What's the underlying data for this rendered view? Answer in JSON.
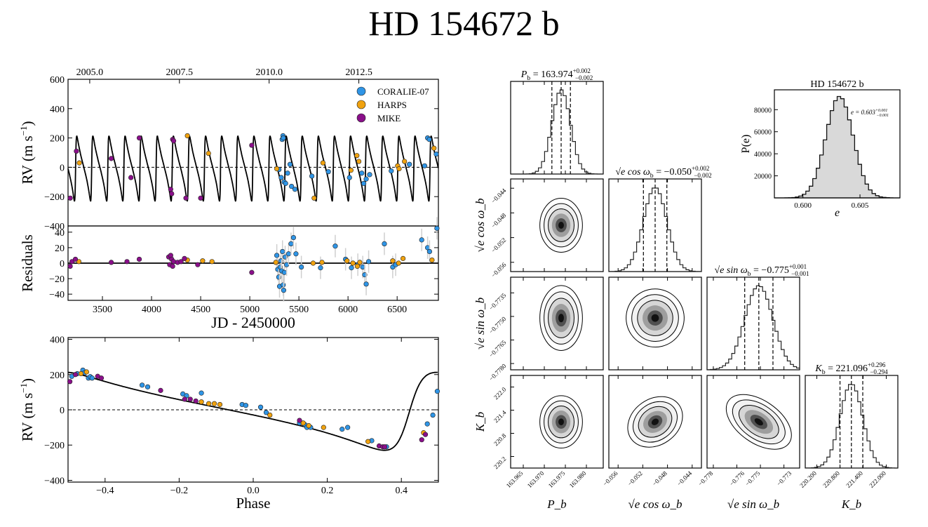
{
  "title": "HD 154672 b",
  "colors": {
    "coralie": "#2f95e6",
    "harps": "#f0a20f",
    "mike": "#8a0f8a",
    "model": "#000000",
    "hist_fill": "#d9d9d9"
  },
  "chart_data": [
    {
      "id": "rv_time",
      "type": "scatter",
      "ylabel": "RV (m s$^{-1}$)",
      "ylabel_text": "RV (m s",
      "ylabel_sup": "−1",
      "ylabel_close": ")",
      "xlim": [
        3150,
        6920
      ],
      "ylim": [
        -400,
        600
      ],
      "yticks": [
        -400,
        -200,
        0,
        200,
        400,
        600
      ],
      "top_axis_ticks": [
        "2005.0",
        "2007.5",
        "2010.0",
        "2012.5"
      ],
      "top_axis_values": [
        2005.0,
        2007.5,
        2010.0,
        2012.5
      ],
      "legend": [
        "CORALIE-07",
        "HARPS",
        "MIKE"
      ],
      "legend_position": "top-right",
      "model": {
        "period": 163.974,
        "K": 221.096,
        "e": 0.603
      },
      "series": [
        {
          "name": "CORALIE-07",
          "points": [
            [
              5297,
              -15
            ],
            [
              5320,
              -70
            ],
            [
              5330,
              190
            ],
            [
              5338,
              215
            ],
            [
              5342,
              200
            ],
            [
              5350,
              -100
            ],
            [
              5365,
              -110
            ],
            [
              5385,
              -40
            ],
            [
              5410,
              20
            ],
            [
              5425,
              -130
            ],
            [
              5460,
              -150
            ],
            [
              5632,
              -60
            ],
            [
              5800,
              -30
            ],
            [
              6015,
              -70
            ],
            [
              6140,
              -40
            ],
            [
              6160,
              -110
            ],
            [
              6185,
              -80
            ],
            [
              6220,
              -50
            ],
            [
              6440,
              -25
            ],
            [
              6625,
              20
            ],
            [
              6780,
              10
            ],
            [
              6810,
              200
            ],
            [
              6828,
              190
            ],
            [
              6898,
              90
            ]
          ]
        },
        {
          "name": "HARPS",
          "points": [
            [
              3265,
              30
            ],
            [
              4365,
              215
            ],
            [
              4580,
              95
            ],
            [
              5275,
              -10
            ],
            [
              5655,
              -210
            ],
            [
              5745,
              30
            ],
            [
              6030,
              -20
            ],
            [
              6090,
              80
            ],
            [
              6110,
              40
            ],
            [
              6505,
              10
            ],
            [
              6520,
              -10
            ],
            [
              6575,
              40
            ],
            [
              6875,
              130
            ]
          ]
        },
        {
          "name": "MIKE",
          "points": [
            [
              3172,
              -210
            ],
            [
              3235,
              110
            ],
            [
              3590,
              60
            ],
            [
              3790,
              -70
            ],
            [
              3875,
              200
            ],
            [
              4195,
              -150
            ],
            [
              4205,
              -180
            ],
            [
              4215,
              190
            ],
            [
              4225,
              180
            ],
            [
              4350,
              -210
            ],
            [
              4500,
              -210
            ],
            [
              5020,
              150
            ]
          ]
        }
      ]
    },
    {
      "id": "residuals",
      "type": "scatter",
      "ylabel": "Residuals",
      "xlabel": "JD - 2450000",
      "xlim": [
        3150,
        6920
      ],
      "ylim": [
        -48,
        48
      ],
      "yticks": [
        -40,
        -20,
        0,
        20,
        40
      ],
      "xticks": [
        3500,
        4000,
        4500,
        5000,
        5500,
        6000,
        6500
      ],
      "series": [
        {
          "name": "CORALIE-07",
          "points": [
            [
              5275,
              10
            ],
            [
              5285,
              -8
            ],
            [
              5295,
              -18
            ],
            [
              5303,
              -30
            ],
            [
              5310,
              -5
            ],
            [
              5318,
              3
            ],
            [
              5325,
              -10
            ],
            [
              5333,
              15
            ],
            [
              5340,
              -28
            ],
            [
              5345,
              -35
            ],
            [
              5352,
              -12
            ],
            [
              5360,
              8
            ],
            [
              5375,
              -2
            ],
            [
              5395,
              12
            ],
            [
              5420,
              25
            ],
            [
              5445,
              33
            ],
            [
              5470,
              12
            ],
            [
              5525,
              -5
            ],
            [
              5720,
              -6
            ],
            [
              5870,
              22
            ],
            [
              5975,
              5
            ],
            [
              6035,
              -6
            ],
            [
              6100,
              -2
            ],
            [
              6150,
              -5
            ],
            [
              6170,
              -15
            ],
            [
              6185,
              -27
            ],
            [
              6210,
              2
            ],
            [
              6370,
              25
            ],
            [
              6455,
              -5
            ],
            [
              6485,
              -2
            ],
            [
              6750,
              30
            ],
            [
              6810,
              20
            ],
            [
              6830,
              15
            ],
            [
              6905,
              45
            ]
          ]
        },
        {
          "name": "HARPS",
          "points": [
            [
              3260,
              2
            ],
            [
              4365,
              4
            ],
            [
              4520,
              3
            ],
            [
              4615,
              2
            ],
            [
              5265,
              1
            ],
            [
              5645,
              0
            ],
            [
              5735,
              1
            ],
            [
              5990,
              3
            ],
            [
              6050,
              0
            ],
            [
              6095,
              -4
            ],
            [
              6120,
              1
            ],
            [
              6455,
              3
            ],
            [
              6515,
              0
            ],
            [
              6560,
              6
            ],
            [
              6855,
              4
            ]
          ]
        },
        {
          "name": "MIKE",
          "points": [
            [
              3172,
              -4
            ],
            [
              3190,
              2
            ],
            [
              3225,
              5
            ],
            [
              3590,
              1
            ],
            [
              3750,
              2
            ],
            [
              3875,
              5
            ],
            [
              4175,
              8
            ],
            [
              4185,
              -2
            ],
            [
              4195,
              10
            ],
            [
              4205,
              5
            ],
            [
              4215,
              -4
            ],
            [
              4225,
              2
            ],
            [
              4265,
              1
            ],
            [
              4300,
              2
            ],
            [
              4335,
              6
            ],
            [
              4470,
              -2
            ],
            [
              5020,
              -12
            ]
          ]
        }
      ]
    },
    {
      "id": "rv_phase",
      "type": "scatter",
      "ylabel": "RV (m s$^{-1}$)",
      "ylabel_text": "RV (m s",
      "ylabel_sup": "−1",
      "ylabel_close": ")",
      "xlabel": "Phase",
      "xlim": [
        -0.5,
        0.5
      ],
      "ylim": [
        -410,
        410
      ],
      "yticks": [
        -400,
        -200,
        0,
        200,
        400
      ],
      "xticks": [
        -0.4,
        -0.2,
        0.0,
        0.2,
        0.4
      ],
      "xticklabels": [
        "−0.4",
        "−0.2",
        "0.0",
        "0.2",
        "0.4"
      ],
      "series": [
        {
          "name": "CORALIE-07",
          "points": [
            [
              -0.49,
              190
            ],
            [
              -0.475,
              205
            ],
            [
              -0.46,
              225
            ],
            [
              -0.455,
              210
            ],
            [
              -0.445,
              180
            ],
            [
              -0.44,
              188
            ],
            [
              -0.435,
              180
            ],
            [
              -0.3,
              140
            ],
            [
              -0.285,
              130
            ],
            [
              -0.19,
              90
            ],
            [
              -0.18,
              80
            ],
            [
              -0.14,
              95
            ],
            [
              -0.03,
              30
            ],
            [
              -0.02,
              25
            ],
            [
              0.02,
              15
            ],
            [
              0.035,
              -15
            ],
            [
              0.125,
              -75
            ],
            [
              0.14,
              -85
            ],
            [
              0.145,
              -100
            ],
            [
              0.155,
              -100
            ],
            [
              0.24,
              -110
            ],
            [
              0.255,
              -100
            ],
            [
              0.32,
              -175
            ],
            [
              0.36,
              -210
            ],
            [
              0.47,
              -80
            ],
            [
              0.485,
              -30
            ],
            [
              0.497,
              105
            ]
          ]
        },
        {
          "name": "HARPS",
          "points": [
            [
              -0.465,
              205
            ],
            [
              -0.45,
              215
            ],
            [
              -0.14,
              45
            ],
            [
              -0.12,
              35
            ],
            [
              -0.105,
              35
            ],
            [
              -0.09,
              30
            ],
            [
              0.045,
              -30
            ],
            [
              0.135,
              -75
            ],
            [
              0.15,
              -90
            ],
            [
              0.19,
              -100
            ],
            [
              0.31,
              -180
            ],
            [
              0.46,
              -130
            ]
          ]
        },
        {
          "name": "MIKE",
          "points": [
            [
              -0.495,
              160
            ],
            [
              -0.48,
              200
            ],
            [
              -0.42,
              190
            ],
            [
              -0.41,
              180
            ],
            [
              -0.25,
              110
            ],
            [
              -0.185,
              60
            ],
            [
              -0.17,
              60
            ],
            [
              -0.155,
              50
            ],
            [
              0.125,
              -60
            ],
            [
              0.34,
              -205
            ],
            [
              0.35,
              -210
            ],
            [
              0.355,
              -210
            ],
            [
              0.455,
              -170
            ],
            [
              0.465,
              -140
            ]
          ]
        }
      ]
    },
    {
      "id": "corner",
      "type": "corner",
      "params": [
        {
          "axis_label": "P_b",
          "title_base": "P",
          "title_sub": "b",
          "value": "163.974",
          "plus": "+0.002",
          "minus": "−0.002",
          "range": [
            163.962,
            163.984
          ],
          "ticks": [
            163.965,
            163.97,
            163.975,
            163.98
          ],
          "ticklabels": [
            "163.965",
            "163.970",
            "163.975",
            "163.980"
          ],
          "mean": 163.974,
          "sigma": 0.0022
        },
        {
          "axis_label": "√e cos ω_b",
          "title_base": "√e cos ω",
          "title_sub": "b",
          "value": "−0.050",
          "plus": "+0.002",
          "minus": "−0.002",
          "range": [
            -0.0575,
            -0.0425
          ],
          "ticks": [
            -0.056,
            -0.052,
            -0.048,
            -0.044
          ],
          "ticklabels": [
            "−0.056",
            "−0.052",
            "−0.048",
            "−0.044"
          ],
          "mean": -0.05,
          "sigma": 0.0019
        },
        {
          "axis_label": "√e sin ω_b",
          "title_base": "√e sin ω",
          "title_sub": "b",
          "value": "−0.775",
          "plus": "+0.001",
          "minus": "−0.001",
          "range": [
            -0.7784,
            -0.7725
          ],
          "ticks": [
            -0.778,
            -0.7765,
            -0.775,
            -0.7735
          ],
          "ticklabels": [
            "−0.7780",
            "−0.7765",
            "−0.7750",
            "−0.7735"
          ],
          "xticks": [
            -0.778,
            -0.776,
            -0.775,
            -0.773
          ],
          "xticklabels": [
            "−0.778",
            "−0.776",
            "−0.775",
            "−0.773"
          ],
          "mean": -0.7751,
          "sigma": 0.0009
        },
        {
          "axis_label": "K_b",
          "title_base": "K",
          "title_sub": "b",
          "value": "221.096",
          "plus": "+0.296",
          "minus": "−0.294",
          "range": [
            219.9,
            222.3
          ],
          "ticks": [
            220.2,
            220.8,
            221.4,
            222.0
          ],
          "ticklabels": [
            "220.2",
            "220.8",
            "221.4",
            "222.0"
          ],
          "xticks": [
            220.2,
            220.8,
            221.4,
            222.0
          ],
          "xticklabels": [
            "220.200",
            "220.800",
            "221.400",
            "222.000"
          ],
          "mean": 221.096,
          "sigma": 0.295
        }
      ],
      "correlations": [
        [
          0,
          0,
          0,
          0
        ],
        [
          0,
          0,
          0,
          0
        ],
        [
          0,
          0.3,
          0,
          0
        ],
        [
          0,
          0.35,
          -0.55,
          0
        ]
      ]
    },
    {
      "id": "ecc_hist",
      "type": "histogram",
      "title": "HD 154672 b",
      "xlabel": "e",
      "ylabel": "P(e)",
      "annotation_base": "e = 0.603",
      "annotation_plus": "+0.001",
      "annotation_minus": "−0.001",
      "xlim": [
        0.5975,
        0.6085
      ],
      "ylim": [
        0,
        98000
      ],
      "xticks": [
        0.6,
        0.605
      ],
      "xticklabels": [
        "0.600",
        "0.605"
      ],
      "yticks": [
        20000,
        40000,
        60000,
        80000
      ],
      "yticklabels": [
        "20000",
        "40000",
        "60000",
        "80000"
      ],
      "mean": 0.6032,
      "sigma": 0.0012,
      "peak": 92000
    }
  ]
}
